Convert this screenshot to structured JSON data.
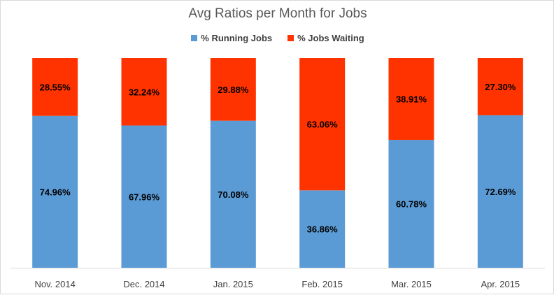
{
  "chart_data": {
    "type": "bar",
    "stacked": true,
    "title": "Avg Ratios per Month for Jobs",
    "categories": [
      "Nov. 2014",
      "Dec. 2014",
      "Jan. 2015",
      "Feb. 2015",
      "Mar. 2015",
      "Apr. 2015"
    ],
    "series": [
      {
        "name": "% Running Jobs",
        "color": "#5B9BD5",
        "values": [
          74.96,
          67.96,
          70.08,
          36.86,
          60.78,
          72.69
        ],
        "labels": [
          "74.96%",
          "67.96%",
          "70.08%",
          "36.86%",
          "60.78%",
          "72.69%"
        ]
      },
      {
        "name": "% Jobs Waiting",
        "color": "#FF3300",
        "values": [
          28.55,
          32.24,
          29.88,
          63.06,
          38.91,
          27.3
        ],
        "labels": [
          "28.55%",
          "32.24%",
          "29.88%",
          "63.06%",
          "38.91%",
          "27.30%"
        ]
      }
    ],
    "legend_position": "top",
    "grid": false
  }
}
